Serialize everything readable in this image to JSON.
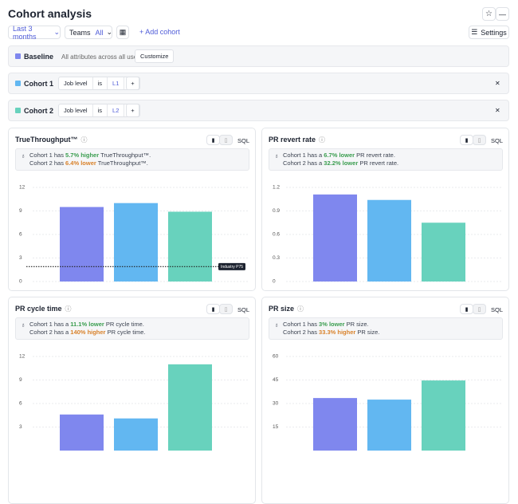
{
  "header": {
    "title": "Cohort analysis"
  },
  "toolbar": {
    "date_range": "Last 3 months",
    "teams_label": "Teams",
    "teams_value": "All",
    "add_cohort": "Add cohort",
    "settings": "Settings"
  },
  "cohorts": [
    {
      "name": "Baseline",
      "color": "#7f87ee",
      "description": "All attributes across all users",
      "action": "Customize"
    },
    {
      "name": "Cohort 1",
      "color": "#62b7f1",
      "filter": {
        "attribute": "Job level",
        "operator": "is",
        "value": "L1"
      }
    },
    {
      "name": "Cohort 2",
      "color": "#68d2bd",
      "filter": {
        "attribute": "Job level",
        "operator": "is",
        "value": "L2"
      }
    }
  ],
  "panels": [
    {
      "title": "TrueThroughput™",
      "sql": "SQL",
      "insights": [
        {
          "prefix": "Cohort 1 has",
          "highlight": "5.7% higher",
          "color": "#3a9d4f",
          "suffix": "TrueThroughput™."
        },
        {
          "prefix": "Cohort 2 has",
          "highlight": "6.4% lower",
          "color": "#d9822b",
          "suffix": "TrueThroughput™."
        }
      ],
      "chart_data": {
        "type": "bar",
        "values": [
          9.5,
          10,
          8.9
        ],
        "ylim": [
          0,
          12
        ],
        "yticks": [
          0,
          3,
          6,
          9,
          12
        ],
        "grid": true,
        "reference": {
          "value": 1.9,
          "label": "Industry P75"
        }
      }
    },
    {
      "title": "PR revert rate",
      "sql": "SQL",
      "insights": [
        {
          "prefix": "Cohort 1 has a",
          "highlight": "6.7% lower",
          "color": "#3a9d4f",
          "suffix": "PR revert rate."
        },
        {
          "prefix": "Cohort 2 has a",
          "highlight": "32.2% lower",
          "color": "#3a9d4f",
          "suffix": "PR revert rate."
        }
      ],
      "chart_data": {
        "type": "bar",
        "values": [
          1.11,
          1.04,
          0.75
        ],
        "ylim": [
          0,
          1.2
        ],
        "yticks": [
          0,
          0.3,
          0.6,
          0.9,
          1.2
        ],
        "grid": true
      }
    },
    {
      "title": "PR cycle time",
      "sql": "SQL",
      "insights": [
        {
          "prefix": "Cohort 1 has a",
          "highlight": "11.1% lower",
          "color": "#3a9d4f",
          "suffix": "PR cycle time."
        },
        {
          "prefix": "Cohort 2 has a",
          "highlight": "140% higher",
          "color": "#d9822b",
          "suffix": "PR cycle time."
        }
      ],
      "chart_data": {
        "type": "bar",
        "values": [
          4.6,
          4.1,
          11
        ],
        "ylim": [
          0,
          12
        ],
        "yticks": [
          3,
          6,
          9,
          12
        ],
        "grid": true
      }
    },
    {
      "title": "PR size",
      "sql": "SQL",
      "insights": [
        {
          "prefix": "Cohort 1 has",
          "highlight": "3% lower",
          "color": "#3a9d4f",
          "suffix": "PR size."
        },
        {
          "prefix": "Cohort 2 has",
          "highlight": "33.3% higher",
          "color": "#d9822b",
          "suffix": "PR size."
        }
      ],
      "chart_data": {
        "type": "bar",
        "values": [
          33.5,
          32.5,
          44.7
        ],
        "ylim": [
          0,
          60
        ],
        "yticks": [
          15,
          30,
          45,
          60
        ],
        "grid": true
      }
    }
  ]
}
